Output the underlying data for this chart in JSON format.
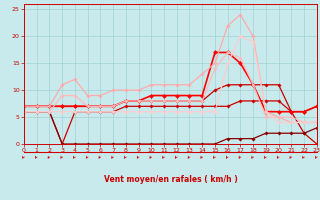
{
  "xlabel": "Vent moyen/en rafales ( km/h )",
  "xlabel_color": "#cc0000",
  "background_color": "#c8eaec",
  "grid_color": "#99cccc",
  "x_ticks": [
    0,
    1,
    2,
    3,
    4,
    5,
    6,
    7,
    8,
    9,
    10,
    11,
    12,
    13,
    14,
    15,
    16,
    17,
    18,
    19,
    20,
    21,
    22,
    23
  ],
  "ylim": [
    0,
    26
  ],
  "xlim": [
    0,
    23
  ],
  "yticks": [
    0,
    5,
    10,
    15,
    20,
    25
  ],
  "series": [
    {
      "x": [
        0,
        1,
        2,
        3,
        4,
        5,
        6,
        7,
        8,
        9,
        10,
        11,
        12,
        13,
        14,
        15,
        16,
        17,
        18,
        19,
        20,
        21,
        22,
        23
      ],
      "y": [
        7,
        7,
        7,
        7,
        7,
        7,
        7,
        7,
        8,
        8,
        8,
        8,
        8,
        8,
        8,
        10,
        11,
        11,
        11,
        11,
        11,
        6,
        6,
        7
      ],
      "color": "#cc0000",
      "lw": 0.9,
      "marker": "D",
      "markersize": 1.8
    },
    {
      "x": [
        0,
        1,
        2,
        3,
        4,
        5,
        6,
        7,
        8,
        9,
        10,
        11,
        12,
        13,
        14,
        15,
        16,
        17,
        18,
        19,
        20,
        21,
        22,
        23
      ],
      "y": [
        6,
        6,
        6,
        0,
        6,
        6,
        6,
        6,
        7,
        7,
        7,
        7,
        7,
        7,
        7,
        7,
        7,
        8,
        8,
        8,
        8,
        6,
        2,
        0
      ],
      "color": "#cc0000",
      "lw": 0.9,
      "marker": "D",
      "markersize": 1.8
    },
    {
      "x": [
        0,
        1,
        2,
        3,
        4,
        5,
        6,
        7,
        8,
        9,
        10,
        11,
        12,
        13,
        14,
        15,
        16,
        17,
        18,
        19,
        20,
        21,
        22,
        23
      ],
      "y": [
        6,
        6,
        6,
        0,
        0,
        0,
        0,
        0,
        0,
        0,
        0,
        0,
        0,
        0,
        0,
        0,
        1,
        1,
        1,
        2,
        2,
        2,
        2,
        3
      ],
      "color": "#880000",
      "lw": 0.9,
      "marker": "D",
      "markersize": 1.8
    },
    {
      "x": [
        0,
        1,
        2,
        3,
        4,
        5,
        6,
        7,
        8,
        9,
        10,
        11,
        12,
        13,
        14,
        15,
        16,
        17,
        18,
        19,
        20,
        21,
        22,
        23
      ],
      "y": [
        7,
        7,
        7,
        7,
        7,
        7,
        7,
        7,
        8,
        8,
        9,
        9,
        9,
        9,
        9,
        17,
        17,
        15,
        11,
        6,
        6,
        6,
        6,
        7
      ],
      "color": "#ff0000",
      "lw": 1.2,
      "marker": "D",
      "markersize": 2.2
    },
    {
      "x": [
        0,
        1,
        2,
        3,
        4,
        5,
        6,
        7,
        8,
        9,
        10,
        11,
        12,
        13,
        14,
        15,
        16,
        17,
        18,
        19,
        20,
        21,
        22,
        23
      ],
      "y": [
        7,
        7,
        7,
        11,
        12,
        9,
        9,
        10,
        10,
        10,
        11,
        11,
        11,
        11,
        13,
        15,
        22,
        24,
        20,
        6,
        5,
        4,
        4,
        4
      ],
      "color": "#ffaaaa",
      "lw": 0.9,
      "marker": "D",
      "markersize": 1.8
    },
    {
      "x": [
        0,
        1,
        2,
        3,
        4,
        5,
        6,
        7,
        8,
        9,
        10,
        11,
        12,
        13,
        14,
        15,
        16,
        17,
        18,
        19,
        20,
        21,
        22,
        23
      ],
      "y": [
        6,
        6,
        6,
        9,
        9,
        7,
        7,
        7,
        8,
        8,
        8,
        8,
        8,
        8,
        8,
        14,
        17,
        16,
        11,
        5,
        5,
        5,
        4,
        4
      ],
      "color": "#ffbbbb",
      "lw": 0.9,
      "marker": "D",
      "markersize": 1.8
    },
    {
      "x": [
        0,
        1,
        2,
        3,
        4,
        5,
        6,
        7,
        8,
        9,
        10,
        11,
        12,
        13,
        14,
        15,
        16,
        17,
        18,
        19,
        20,
        21,
        22,
        23
      ],
      "y": [
        6,
        6,
        6,
        6,
        6,
        6,
        6,
        6,
        6,
        6,
        6,
        6,
        6,
        6,
        6,
        6,
        15,
        20,
        19,
        6,
        4,
        4,
        4,
        4
      ],
      "color": "#ffcccc",
      "lw": 0.9,
      "marker": "D",
      "markersize": 1.8
    }
  ],
  "arrow_color": "#cc0000"
}
